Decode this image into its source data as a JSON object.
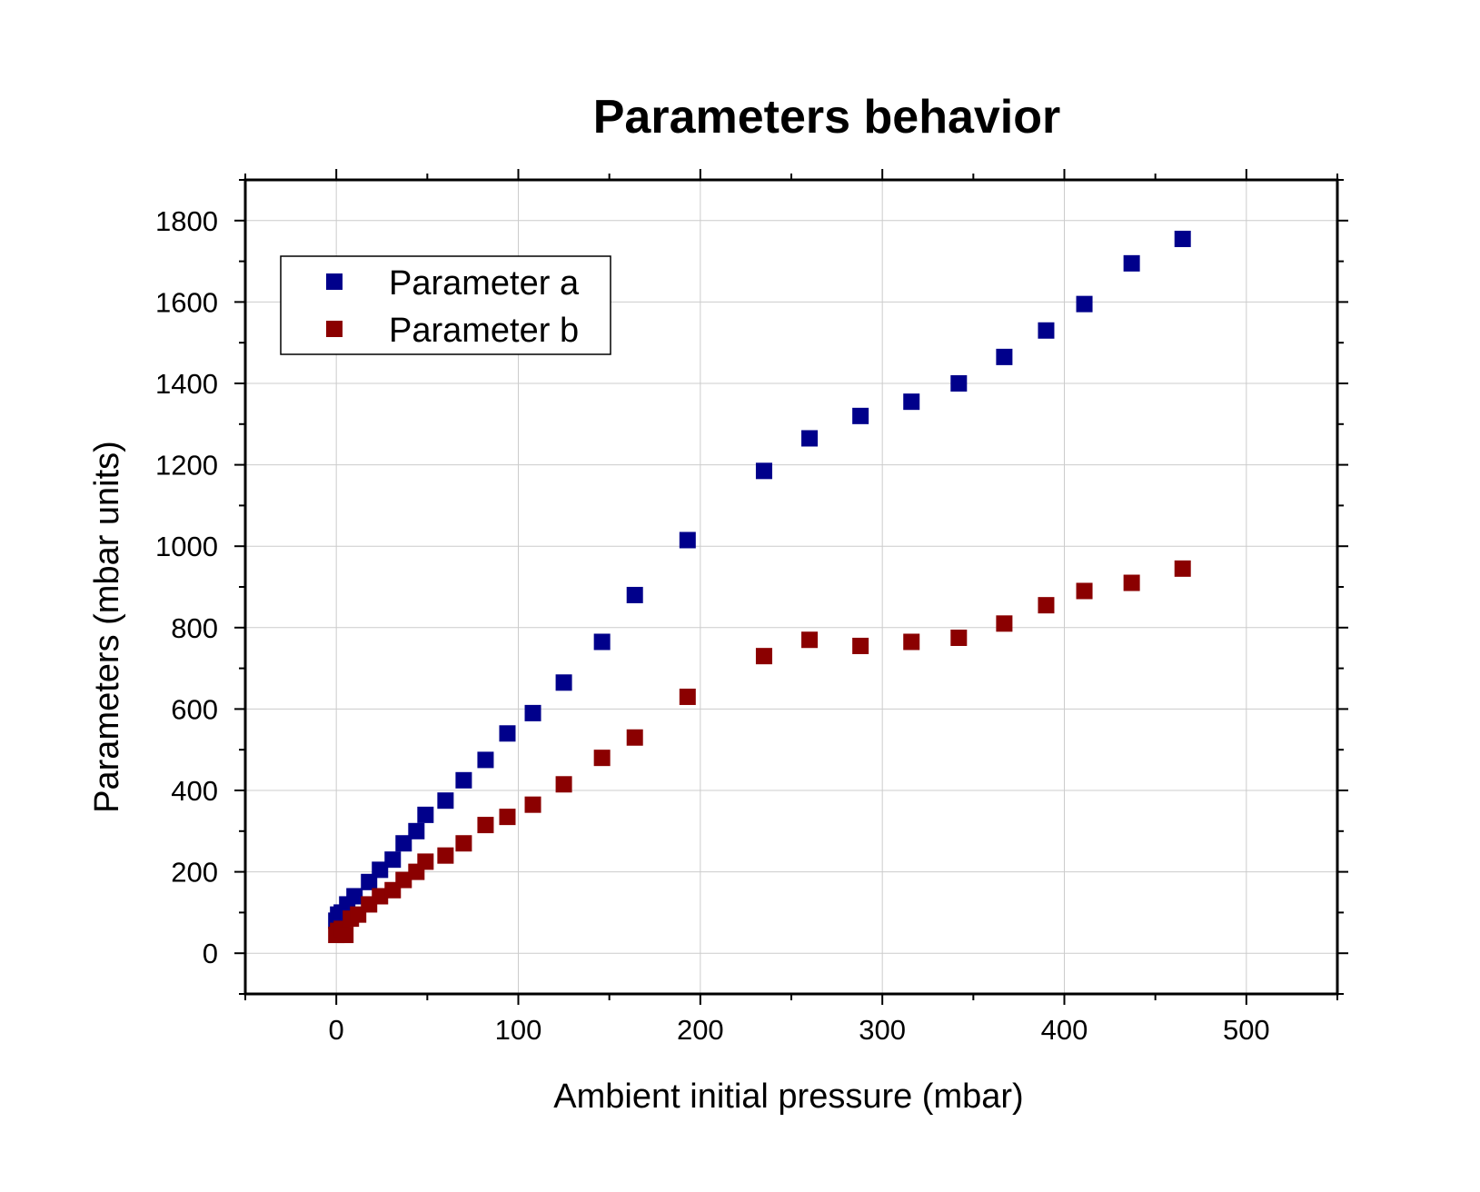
{
  "chart_data": {
    "type": "scatter",
    "title": "Parameters behavior",
    "xlabel": "Ambient initial pressure (mbar)",
    "ylabel": "Parameters (mbar units)",
    "xlim": [
      -50,
      550
    ],
    "ylim": [
      -100,
      1900
    ],
    "xticks": [
      0,
      100,
      200,
      300,
      400,
      500
    ],
    "yticks": [
      0,
      200,
      400,
      600,
      800,
      1000,
      1200,
      1400,
      1600,
      1800
    ],
    "grid": true,
    "legend_position": "top-left",
    "series": [
      {
        "name": "Parameter a",
        "color": "#00008b",
        "marker": "square",
        "x": [
          0,
          1,
          3,
          6,
          10,
          18,
          24,
          31,
          37,
          44,
          49,
          60,
          70,
          82,
          94,
          108,
          125,
          146,
          164,
          193,
          235,
          260,
          288,
          316,
          342,
          367,
          390,
          411,
          437,
          465
        ],
        "y": [
          80,
          95,
          100,
          120,
          140,
          175,
          205,
          230,
          270,
          300,
          340,
          375,
          425,
          475,
          540,
          590,
          665,
          765,
          880,
          1015,
          1185,
          1265,
          1320,
          1355,
          1400,
          1465,
          1530,
          1595,
          1695,
          1755
        ]
      },
      {
        "name": "Parameter b",
        "color": "#8b0000",
        "marker": "square",
        "x": [
          0,
          1,
          3,
          5,
          8,
          12,
          18,
          24,
          31,
          37,
          44,
          49,
          60,
          70,
          82,
          94,
          108,
          125,
          146,
          164,
          193,
          235,
          260,
          288,
          316,
          342,
          367,
          390,
          411,
          437,
          465
        ],
        "y": [
          45,
          55,
          60,
          45,
          85,
          95,
          120,
          140,
          155,
          180,
          200,
          225,
          240,
          270,
          315,
          335,
          365,
          415,
          480,
          530,
          630,
          730,
          770,
          755,
          765,
          775,
          810,
          855,
          890,
          910,
          945
        ]
      }
    ]
  }
}
